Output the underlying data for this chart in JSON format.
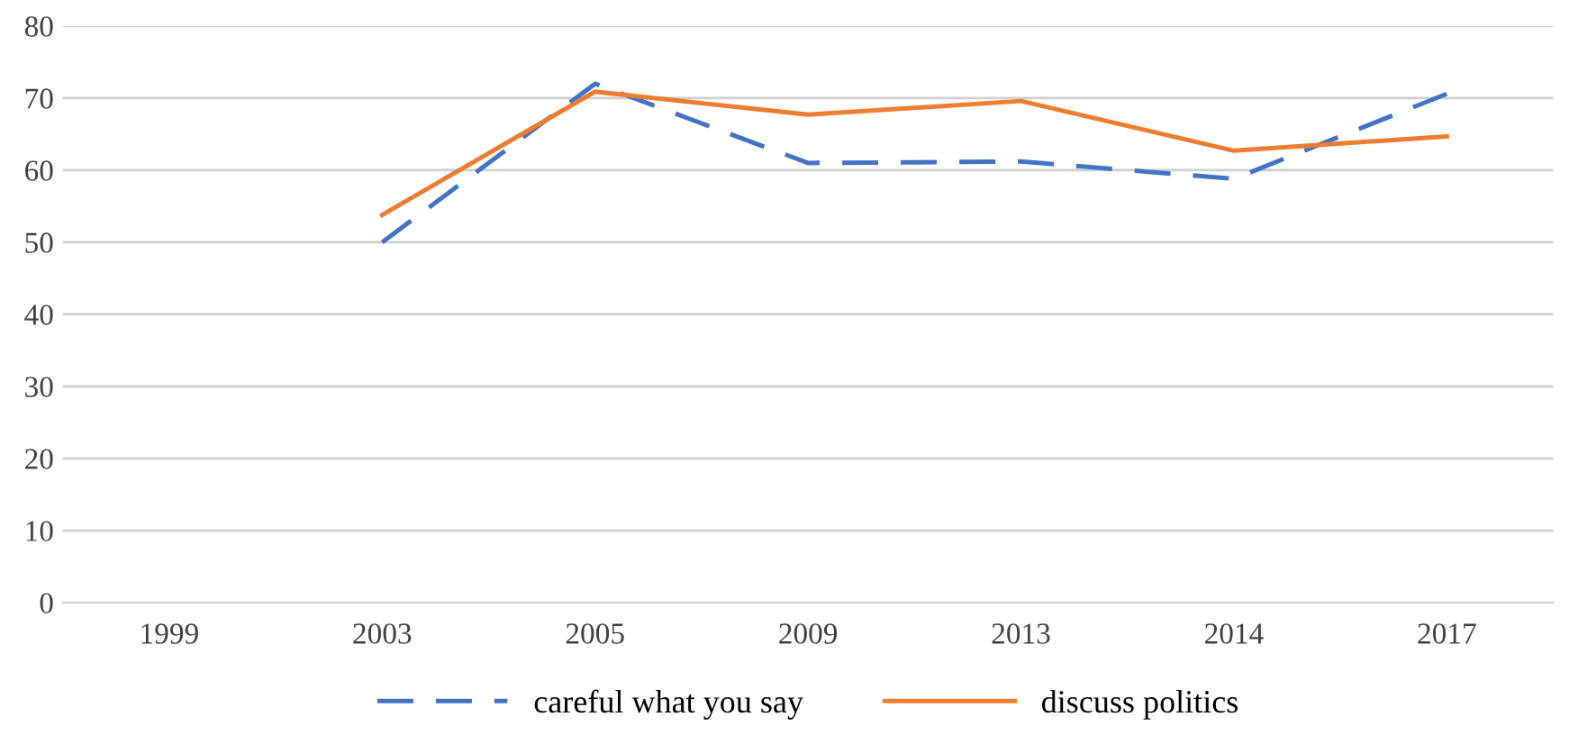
{
  "chart_data": {
    "type": "line",
    "categories": [
      "1999",
      "2003",
      "2005",
      "2009",
      "2013",
      "2014",
      "2017"
    ],
    "series": [
      {
        "name": "careful what you say",
        "color": "#4472c4",
        "line_style": "dashed",
        "values": [
          null,
          50,
          72,
          61,
          61.2,
          58.8,
          70.6
        ]
      },
      {
        "name": "discuss politics",
        "color": "#ed7d31",
        "line_style": "solid",
        "values": [
          null,
          53.8,
          70.9,
          67.7,
          69.6,
          62.7,
          64.7
        ]
      }
    ],
    "ylim": [
      0,
      80
    ],
    "yticks": [
      0,
      10,
      20,
      30,
      40,
      50,
      60,
      70,
      80
    ],
    "grid": "y",
    "legend": "bottom"
  }
}
